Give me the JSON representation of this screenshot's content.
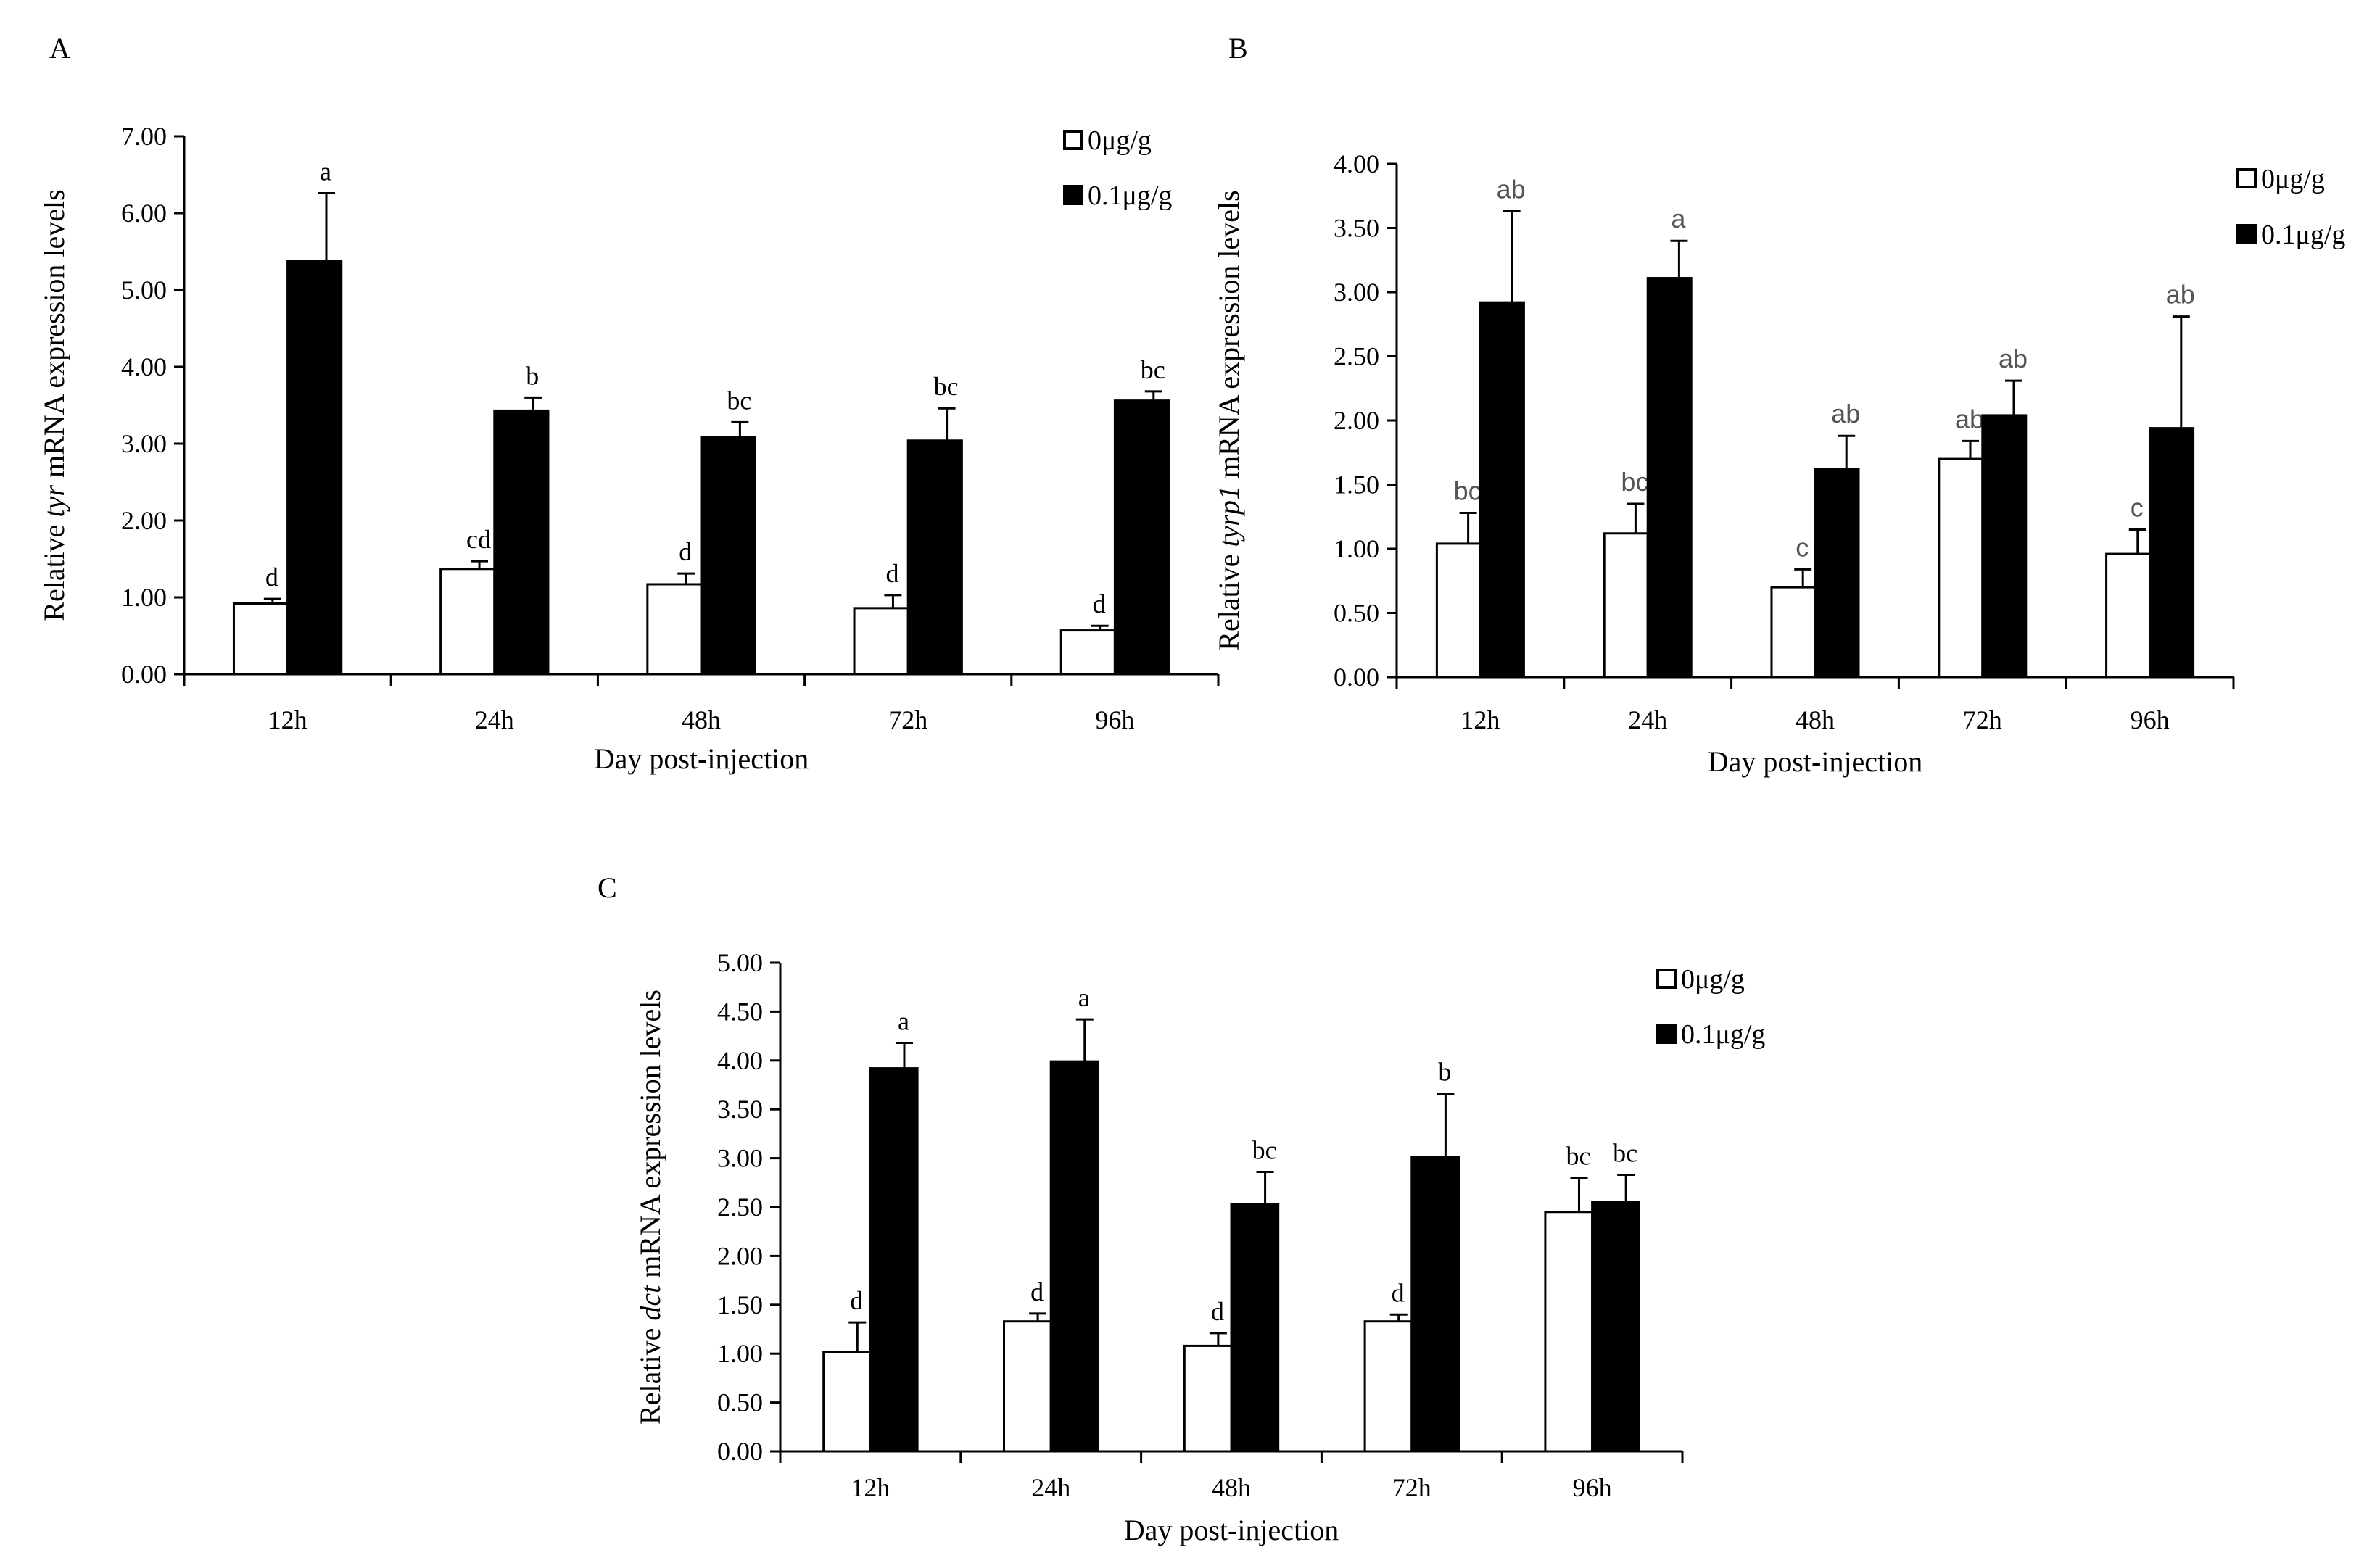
{
  "chart_data": [
    {
      "panel": "A",
      "type": "bar",
      "categories": [
        "12h",
        "24h",
        "48h",
        "72h",
        "96h"
      ],
      "xlabel": "Day post-injection",
      "ylabel_pre": "Relative ",
      "ylabel_gene": "tyr",
      "ylabel_post": " mRNA expression levels",
      "ylim": [
        0,
        7
      ],
      "yticks": [
        "0.00",
        "1.00",
        "2.00",
        "3.00",
        "4.00",
        "5.00",
        "6.00",
        "7.00"
      ],
      "series": [
        {
          "name": "0μg/g",
          "color": "#ffffff",
          "values": [
            0.92,
            1.37,
            1.17,
            0.86,
            0.57
          ],
          "errors": [
            0.06,
            0.1,
            0.14,
            0.17,
            0.06
          ],
          "labels": [
            "d",
            "cd",
            "d",
            "d",
            "d"
          ]
        },
        {
          "name": "0.1μg/g",
          "color": "#000000",
          "values": [
            5.38,
            3.43,
            3.08,
            3.04,
            3.56
          ],
          "errors": [
            0.88,
            0.17,
            0.2,
            0.42,
            0.12
          ],
          "labels": [
            "a",
            "b",
            "bc",
            "bc",
            "bc"
          ]
        }
      ]
    },
    {
      "panel": "B",
      "type": "bar",
      "categories": [
        "12h",
        "24h",
        "48h",
        "72h",
        "96h"
      ],
      "xlabel": "Day post-injection",
      "ylabel_pre": "Relative ",
      "ylabel_gene": "tyrp1",
      "ylabel_post": " mRNA expression levels",
      "ylim": [
        0,
        4
      ],
      "yticks": [
        "0.00",
        "0.50",
        "1.00",
        "1.50",
        "2.00",
        "2.50",
        "3.00",
        "3.50",
        "4.00"
      ],
      "gray_labels": true,
      "series": [
        {
          "name": "0μg/g",
          "color": "#ffffff",
          "values": [
            1.04,
            1.12,
            0.7,
            1.7,
            0.96
          ],
          "errors": [
            0.24,
            0.23,
            0.14,
            0.14,
            0.19
          ],
          "labels": [
            "bc",
            "bc",
            "c",
            "ab",
            "c"
          ]
        },
        {
          "name": "0.1μg/g",
          "color": "#000000",
          "values": [
            2.92,
            3.11,
            1.62,
            2.04,
            1.94
          ],
          "errors": [
            0.71,
            0.29,
            0.26,
            0.27,
            0.87
          ],
          "labels": [
            "ab",
            "a",
            "ab",
            "ab",
            "ab"
          ]
        }
      ]
    },
    {
      "panel": "C",
      "type": "bar",
      "categories": [
        "12h",
        "24h",
        "48h",
        "72h",
        "96h"
      ],
      "xlabel": "Day post-injection",
      "ylabel_pre": "Relative ",
      "ylabel_gene": "dct",
      "ylabel_post": " mRNA expression levels",
      "ylim": [
        0,
        5
      ],
      "yticks": [
        "0.00",
        "0.50",
        "1.00",
        "1.50",
        "2.00",
        "2.50",
        "3.00",
        "3.50",
        "4.00",
        "4.50",
        "5.00"
      ],
      "series": [
        {
          "name": "0μg/g",
          "color": "#ffffff",
          "values": [
            1.02,
            1.33,
            1.08,
            1.33,
            2.45
          ],
          "errors": [
            0.3,
            0.08,
            0.13,
            0.07,
            0.35
          ],
          "labels": [
            "d",
            "d",
            "d",
            "d",
            "bc"
          ]
        },
        {
          "name": "0.1μg/g",
          "color": "#000000",
          "values": [
            3.92,
            3.99,
            2.53,
            3.01,
            2.55
          ],
          "errors": [
            0.26,
            0.43,
            0.33,
            0.65,
            0.28
          ],
          "labels": [
            "a",
            "a",
            "bc",
            "b",
            "bc"
          ]
        }
      ]
    }
  ]
}
